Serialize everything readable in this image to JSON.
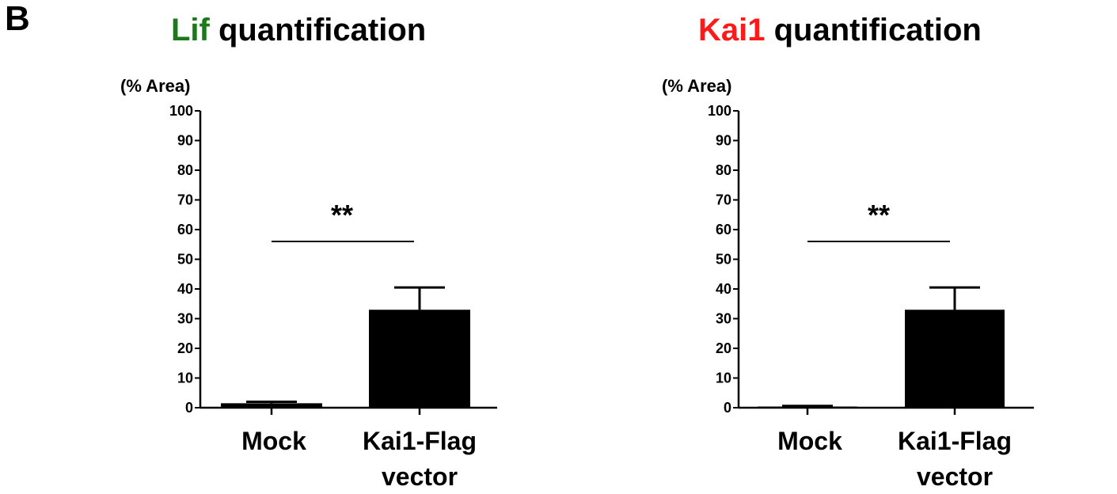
{
  "figure": {
    "panel_label": "B"
  },
  "chart_data": [
    {
      "type": "bar",
      "title_marker": "Lif",
      "title_rest": "quantification",
      "title_marker_color": "#1a7a1a",
      "ylabel": "(% Area)",
      "ylim": [
        0,
        100
      ],
      "yticks": [
        0,
        10,
        20,
        30,
        40,
        50,
        60,
        70,
        80,
        90,
        100
      ],
      "categories": [
        [
          "Mock"
        ],
        [
          "Kai1-Flag",
          "vector"
        ]
      ],
      "values": [
        1.5,
        33
      ],
      "errors": [
        0.5,
        7.5
      ],
      "significance": "**",
      "bar_color": "#000000"
    },
    {
      "type": "bar",
      "title_marker": "Kai1",
      "title_rest": "quantification",
      "title_marker_color": "#ff1a1a",
      "ylabel": "(% Area)",
      "ylim": [
        0,
        100
      ],
      "yticks": [
        0,
        10,
        20,
        30,
        40,
        50,
        60,
        70,
        80,
        90,
        100
      ],
      "categories": [
        [
          "Mock"
        ],
        [
          "Kai1-Flag",
          "vector"
        ]
      ],
      "values": [
        0.4,
        33
      ],
      "errors": [
        0.2,
        7.5
      ],
      "significance": "**",
      "bar_color": "#000000"
    }
  ]
}
